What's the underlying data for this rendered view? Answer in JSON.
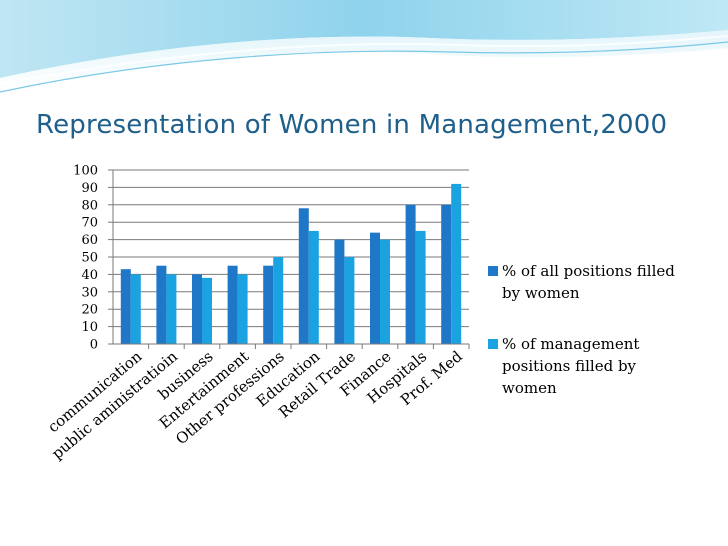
{
  "slide": {
    "title": "Representation of Women in Management,2000"
  },
  "colors": {
    "series1": "#1f77c8",
    "series2": "#1aa3e0",
    "title": "#1f5f8b"
  },
  "chart_data": {
    "type": "bar",
    "title": "Representation of Women in Management,2000",
    "xlabel": "",
    "ylabel": "",
    "ylim": [
      0,
      100
    ],
    "yticks": [
      0,
      10,
      20,
      30,
      40,
      50,
      60,
      70,
      80,
      90,
      100
    ],
    "grid": true,
    "legend_position": "right",
    "categories": [
      "communication",
      "public aministratioin",
      "business",
      "Entertainment",
      "Other professions",
      "Education",
      "Retail Trade",
      "Finance",
      "Hospitals",
      "Prof. Med"
    ],
    "series": [
      {
        "name": "% of all positions filled by women",
        "values": [
          43,
          45,
          40,
          45,
          45,
          78,
          60,
          64,
          80,
          80
        ]
      },
      {
        "name": "% of management positions filled by women",
        "values": [
          40,
          40,
          38,
          40,
          50,
          65,
          50,
          60,
          65,
          92
        ]
      }
    ]
  }
}
